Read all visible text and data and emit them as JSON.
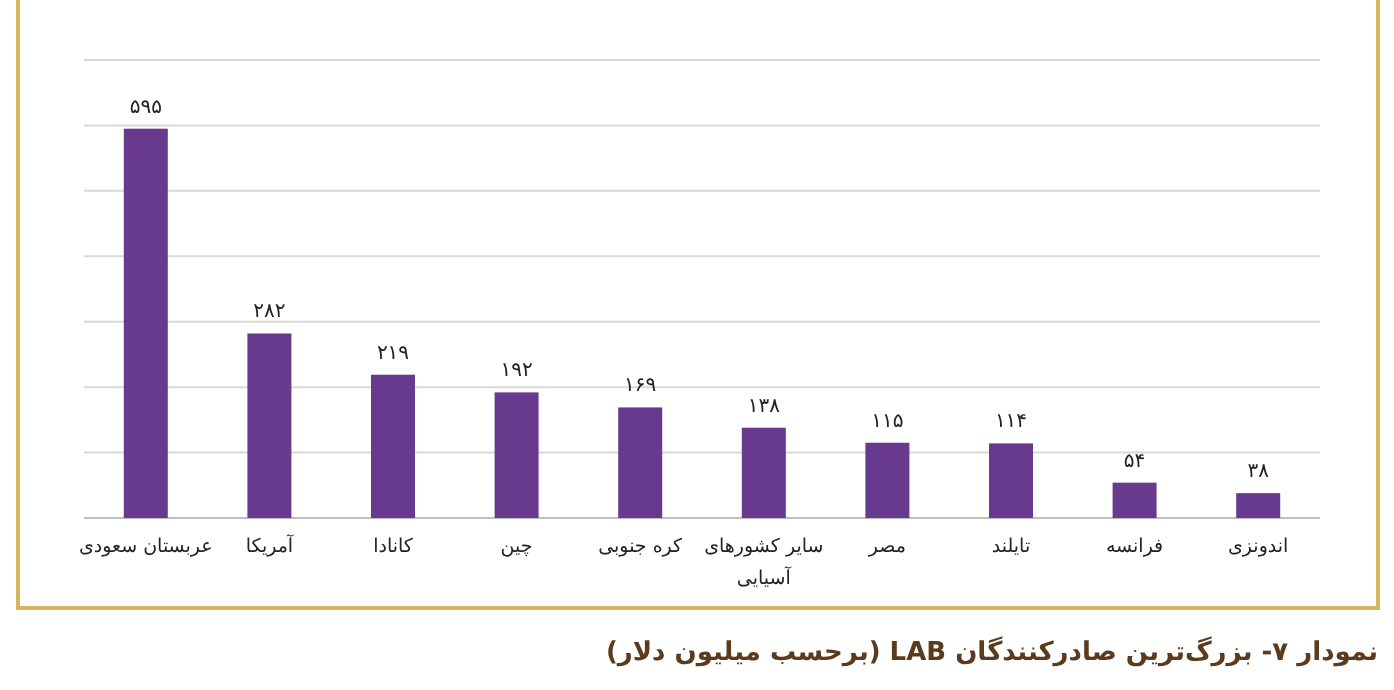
{
  "chart_data": {
    "type": "bar",
    "title": "نمودار ۷- بزرگ‌ترین صادرکنندگان LAB (برحسب میلیون دلار)",
    "categories": [
      "عربستان سعودی",
      "آمریکا",
      "کانادا",
      "چین",
      "کره جنوبی",
      "سایر کشورهای\nآسیایی",
      "مصر",
      "تایلند",
      "فرانسه",
      "اندونزی"
    ],
    "values": [
      595,
      282,
      219,
      192,
      169,
      138,
      115,
      114,
      54,
      38
    ],
    "value_labels": [
      "۵۹۵",
      "۲۸۲",
      "۲۱۹",
      "۱۹۲",
      "۱۶۹",
      "۱۳۸",
      "۱۱۵",
      "۱۱۴",
      "۵۴",
      "۳۸"
    ],
    "color": "#673a8e",
    "ylim": [
      0,
      700
    ],
    "yticks": [
      {
        "value": 0,
        "label": null
      },
      {
        "value": 100,
        "label": null
      },
      {
        "value": 200,
        "label": null
      },
      {
        "value": 300,
        "label": null
      },
      {
        "value": 400,
        "label": null
      },
      {
        "value": 500,
        "label": null
      },
      {
        "value": 600,
        "label": null
      },
      {
        "value": 700,
        "label": null
      }
    ],
    "grid": "y",
    "tick_labels": "x"
  }
}
